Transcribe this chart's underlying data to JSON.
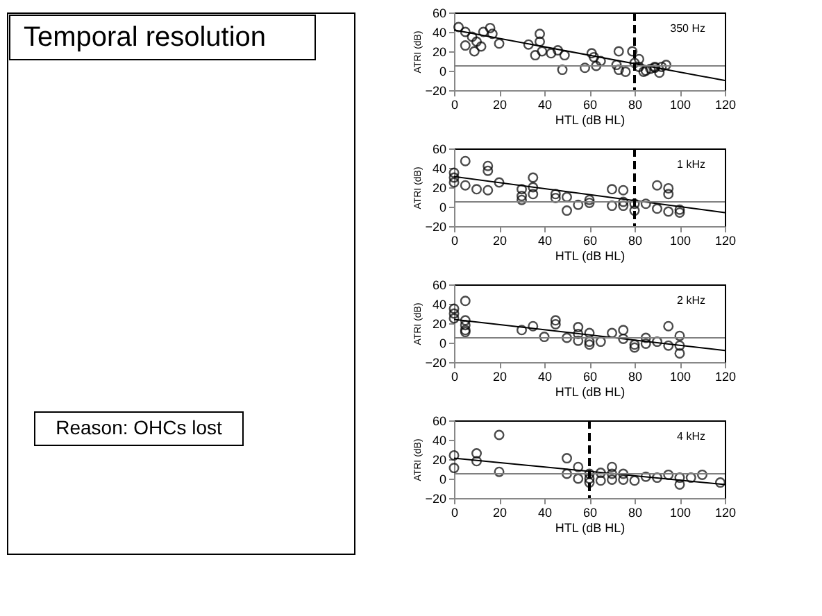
{
  "chart_data": [
    {
      "type": "other",
      "title": "Temporal resolution",
      "annotations": [
        "Reason: OHCs lost"
      ]
    },
    {
      "type": "scatter",
      "xlabel": "HTL (dB HL)",
      "ylabel": "ATRI (dB)",
      "xlim": [
        0,
        120
      ],
      "ylim": [
        -20,
        60
      ],
      "xticks": [
        0,
        20,
        40,
        60,
        80,
        100,
        120
      ],
      "yticks": [
        -20,
        0,
        20,
        40,
        60
      ],
      "grid": false,
      "annotations": [
        "350 Hz"
      ],
      "ref_lines": [
        {
          "axis": "y",
          "value": 5,
          "color": "#808080",
          "line_style": "solid"
        },
        {
          "axis": "x",
          "value": 80,
          "color": "#000000",
          "line_style": "dashed"
        }
      ],
      "series": [
        {
          "type": "scatter",
          "marker": "circle",
          "color": "#000000",
          "x": [
            2,
            5,
            8,
            5,
            10,
            9,
            12,
            13,
            17,
            20,
            16,
            33,
            36,
            38,
            38,
            39,
            43,
            46,
            49,
            48,
            58,
            61,
            62,
            63,
            65,
            73,
            72,
            73,
            76,
            79,
            80,
            82,
            82,
            84,
            87,
            89,
            91,
            89,
            92,
            94,
            85
          ],
          "values": [
            45,
            40,
            35,
            26,
            30,
            20,
            25,
            40,
            38,
            28,
            44,
            27,
            16,
            30,
            38,
            20,
            18,
            21,
            16,
            1,
            3,
            18,
            14,
            5,
            10,
            20,
            6,
            1,
            -1,
            20,
            8,
            12,
            4,
            -1,
            2,
            3,
            -2,
            4,
            4,
            6,
            0
          ]
        },
        {
          "type": "line",
          "color": "#000000",
          "x": [
            0,
            120
          ],
          "values": [
            42,
            -10
          ]
        }
      ]
    },
    {
      "type": "scatter",
      "xlabel": "HTL (dB HL)",
      "ylabel": "ATRI (dB)",
      "xlim": [
        0,
        120
      ],
      "ylim": [
        -20,
        60
      ],
      "xticks": [
        0,
        20,
        40,
        60,
        80,
        100,
        120
      ],
      "yticks": [
        -20,
        0,
        20,
        40,
        60
      ],
      "grid": false,
      "annotations": [
        "1 kHz"
      ],
      "ref_lines": [
        {
          "axis": "y",
          "value": 5,
          "color": "#808080",
          "line_style": "solid"
        },
        {
          "axis": "x",
          "value": 80,
          "color": "#000000",
          "line_style": "dashed"
        }
      ],
      "series": [
        {
          "type": "scatter",
          "marker": "circle",
          "color": "#000000",
          "x": [
            0,
            0,
            0,
            5,
            5,
            10,
            15,
            15,
            15,
            20,
            30,
            30,
            30,
            35,
            35,
            35,
            45,
            45,
            50,
            50,
            55,
            60,
            60,
            70,
            70,
            75,
            75,
            75,
            80,
            80,
            85,
            90,
            90,
            95,
            95,
            95,
            100,
            100
          ],
          "values": [
            25,
            30,
            35,
            47,
            22,
            18,
            17,
            37,
            42,
            25,
            18,
            11,
            7,
            30,
            20,
            13,
            13,
            9,
            10,
            -4,
            2,
            7,
            4,
            18,
            1,
            17,
            5,
            1,
            3,
            -4,
            3,
            22,
            -2,
            19,
            13,
            -5,
            -3,
            -6
          ]
        },
        {
          "type": "line",
          "color": "#000000",
          "x": [
            0,
            120
          ],
          "values": [
            31,
            -6
          ]
        }
      ]
    },
    {
      "type": "scatter",
      "xlabel": "HTL (dB HL)",
      "ylabel": "ATRI (dB)",
      "xlim": [
        0,
        120
      ],
      "ylim": [
        -20,
        60
      ],
      "xticks": [
        0,
        20,
        40,
        60,
        80,
        100,
        120
      ],
      "yticks": [
        -20,
        0,
        20,
        40,
        60
      ],
      "grid": false,
      "annotations": [
        "2 kHz"
      ],
      "ref_lines": [
        {
          "axis": "y",
          "value": 5,
          "color": "#808080",
          "line_style": "solid"
        }
      ],
      "series": [
        {
          "type": "scatter",
          "marker": "circle",
          "color": "#000000",
          "x": [
            0,
            0,
            0,
            5,
            5,
            5,
            5,
            5,
            30,
            35,
            40,
            45,
            45,
            50,
            55,
            55,
            55,
            60,
            60,
            60,
            65,
            70,
            75,
            75,
            80,
            80,
            85,
            85,
            90,
            95,
            95,
            100,
            100,
            100
          ],
          "values": [
            35,
            30,
            25,
            43,
            23,
            18,
            13,
            11,
            13,
            17,
            6,
            23,
            19,
            5,
            16,
            9,
            2,
            10,
            1,
            -2,
            1,
            10,
            13,
            4,
            -2,
            -5,
            5,
            -1,
            1,
            17,
            -3,
            7,
            -3,
            -11
          ]
        },
        {
          "type": "line",
          "color": "#000000",
          "x": [
            0,
            120
          ],
          "values": [
            24,
            -8
          ]
        }
      ]
    },
    {
      "type": "scatter",
      "xlabel": "HTL (dB HL)",
      "ylabel": "ATRI (dB)",
      "xlim": [
        0,
        120
      ],
      "ylim": [
        -20,
        60
      ],
      "xticks": [
        0,
        20,
        40,
        60,
        80,
        100,
        120
      ],
      "yticks": [
        -20,
        0,
        20,
        40,
        60
      ],
      "grid": false,
      "annotations": [
        "4 kHz"
      ],
      "ref_lines": [
        {
          "axis": "y",
          "value": 5,
          "color": "#808080",
          "line_style": "solid"
        },
        {
          "axis": "x",
          "value": 60,
          "color": "#000000",
          "line_style": "dashed"
        }
      ],
      "series": [
        {
          "type": "scatter",
          "marker": "circle",
          "color": "#000000",
          "x": [
            0,
            0,
            10,
            10,
            20,
            20,
            50,
            50,
            55,
            55,
            60,
            60,
            60,
            65,
            65,
            70,
            70,
            70,
            75,
            75,
            80,
            85,
            90,
            95,
            100,
            100,
            105,
            110,
            118
          ],
          "values": [
            24,
            11,
            26,
            18,
            45,
            7,
            21,
            5,
            12,
            0,
            5,
            -4,
            0,
            6,
            -2,
            12,
            5,
            -1,
            5,
            -1,
            -2,
            2,
            1,
            4,
            1,
            -6,
            1,
            4,
            -4
          ]
        },
        {
          "type": "line",
          "color": "#000000",
          "x": [
            0,
            120
          ],
          "values": [
            21,
            -6
          ]
        }
      ]
    }
  ]
}
